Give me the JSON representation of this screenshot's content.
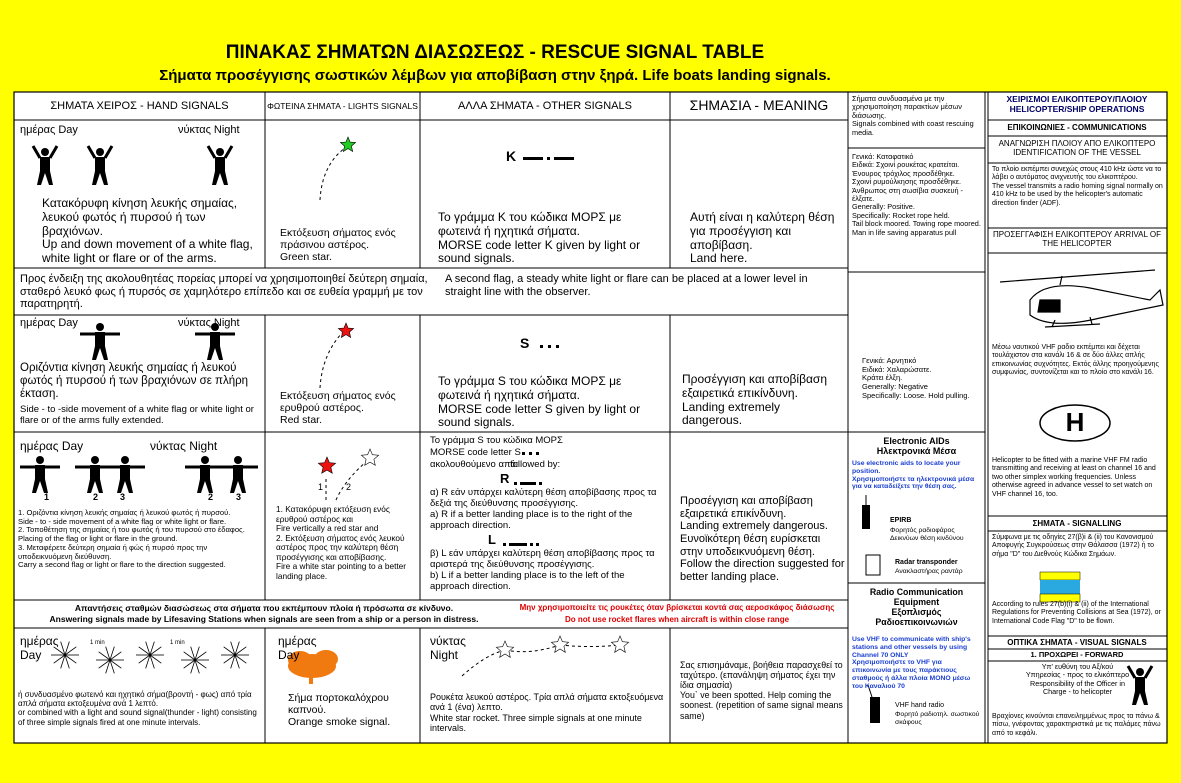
{
  "header": {
    "title": "ΠΙΝΑΚΑΣ ΣΗΜΑΤΩΝ ΔΙΑΣΩΣΕΩΣ - RESCUE SIGNAL TABLE",
    "subtitle": "Σήματα προσέγγισης σωστικών λέμβων για αποβίβαση στην ξηρά.  Life boats landing signals."
  },
  "table": {
    "headers": [
      "ΣΗΜΑΤΑ ΧΕΙΡΟΣ - HAND SIGNALS",
      "ΦΩΤΕΙΝΑ ΣΗΜΑΤΑ - LIGHTS SIGNALS",
      "ΑΛΛΑ ΣΗΜΑΤΑ - OTHER SIGNALS",
      "ΣΗΜΑΣΙΑ - MEANING"
    ],
    "rows": [
      {
        "day": "ημέρας   Day",
        "night": "νύκτας   Night",
        "hand_gr": "Κατακόρυφη κίνηση λευκής σημαίας, λευκού φωτός ή πυρσού ή των βραχιόνων.",
        "hand_en": "Up and down movement of a white flag, white light or flare or of the arms.",
        "light_gr": "Εκτόξευση σήματος ενός πράσινου αστέρος.",
        "light_en": "Green star.",
        "morse": "K",
        "other_gr": "Το γράμμα K του κώδικα ΜΟΡΣ με φωτεινά ή ηχητικά σήματα.",
        "other_en": "MORSE code letter K given by light or sound signals.",
        "meaning_gr": "Αυτή είναι η καλύτερη θέση για προσέγγιση και αποβίβαση.",
        "meaning_en": "Land here."
      },
      {
        "day": "ημέρας   Day",
        "night": "νύκτας   Night",
        "hand_gr": "Οριζόντια κίνηση λευκής σημαίας ή λευκού φωτός ή πυρσού ή των βραχιόνων σε πλήρη έκταση.",
        "hand_en": "Side - to -side movement of a white flag or white light or flare or of  the arms fully extended.",
        "light_gr": "Εκτόξευση σήματος ενός ερυθρού αστέρος.",
        "light_en": "Red star.",
        "morse": "S",
        "other_gr": "Το γράμμα S του κώδικα ΜΟΡΣ με φωτεινά ή ηχητικά σήματα.",
        "other_en": "MORSE code letter S given by light or sound signals.",
        "meaning_gr": "Προσέγγιση και αποβίβαση εξαιρετικά επικίνδυνη.",
        "meaning_en": "Landing extremely dangerous."
      },
      {
        "day": "ημέρας   Day",
        "night": "νύκτας   Night",
        "numbers": [
          "1",
          "2",
          "3",
          "2",
          "3"
        ],
        "hand_items": [
          {
            "gr": "1. Οριζόντια κίνηση λευκής σημαίας ή λευκού φωτός ή πυρσού.",
            "en": "Side - to - side movement of a white flag or white  light or flare."
          },
          {
            "gr": "2. Τοποθέτηση της σημαίας ή του φωτός ή του πυρσού στο έδαφος.",
            "en": "Placing of the flag or light or flare in the  ground."
          },
          {
            "gr": "3. Μεταφέρετε δεύτερη σημαία ή φώς ή πυρσό προς την υποδεικνυόμενη διεύθυνση.",
            "en": "Carry a second flag or light or flare to the direction suggested."
          }
        ],
        "star_labels": [
          "1",
          "2"
        ],
        "light_items": [
          {
            "gr": "1. Κατακόρυφη εκτόξευση ενός ερυθρού αστέρος και",
            "en": "Fire vertically a red star and"
          },
          {
            "gr": "2. Εκτόξευση σήματος ενός λευκού αστέρος προς την καλύτερη θέση προσέγγισης και αποβίβασης.",
            "en": "Fire a white star pointing to a better landing place."
          }
        ],
        "intro_gr": "Το γράμμα S του κώδικα ΜΟΡΣ",
        "intro_en": "MORSE code letter S",
        "follow_gr": "ακολουθούμενο από:",
        "follow_en": "followed by:",
        "r": "R",
        "a_gr": "α) R εάν υπάρχει καλύτερη θέση αποβίβασης προς τα δεξιά της διεύθυνσης προσέγγισης.",
        "a_en": "a) R if a better landing place is to the right of the approach direction.",
        "l": "L",
        "b_gr": "β) L εάν υπάρχει καλύτερη θέση αποβίβασης προς τα αριστερά της διεύθυνσης προσέγγισης.",
        "b_en": "b) L if a better landing place is to the left of the approach direction.",
        "meaning_gr": "Προσέγγιση και αποβίβαση εξαιρετικά επικίνδυνη.",
        "meaning_en": "Landing extremely dangerous.",
        "meaning_gr2": "Ευνοϊκότερη θέση ευρίσκεται στην υποδεικνυόμενη θέση.",
        "meaning_en2": "Follow the direction suggested for better landing place."
      },
      {
        "c1_day_gr": "ημέρας",
        "c1_day_en": "Day",
        "min_labels": [
          "1 min",
          "1 min"
        ],
        "c1_gr": "ή συνδυασμένο φωτεινό και ηχητικό σήμα(βροντή - φως) από τρία απλά σήματα εκτοξευμένα ανά 1 λεπτό.",
        "c1_en": "or combined with a light and sound signal(thunder - light) consisting of three simple signals fired at one minute intervals.",
        "c2_day_gr": "ημέρας",
        "c2_day_en": "Day",
        "c2_gr": "Σήμα πορτοκαλόχρου καπνού.",
        "c2_en": "Orange smoke signal.",
        "c3_night_gr": "νύκτας",
        "c3_night_en": "Night",
        "c3_gr": "Ρουκέτα λευκού αστέρος. Τρία απλά σήματα εκτοξευόμενα ανά 1 (ένα) λεπτο.",
        "c3_en": "White star rocket. Three simple signals at one minute intervals.",
        "c4_gr": "Σας επισημάναμε, βοήθεια παρασχεθεί το ταχύτερο. (επανάληψη σήματος έχει την ίδια σημασία)",
        "c4_en": "You` ve been spotted. Help coming the soonest. (repetition of same signal means same)"
      }
    ],
    "note": {
      "gr": "Προς ένδειξη της ακολουθητέας πορείας μπορεί να χρησιμοποιηθεί δεύτερη σημαία, σταθερό λευκό φως ή πυρσός σε χαμηλότερο επίπεδο και σε ευθεία γραμμή με τον παρατηρητή.",
      "en": "A second flag, a steady white light or flare can be placed at a lower level in straight line with the observer."
    },
    "answer": {
      "gr": "Απαντήσεις σταθμών διασώσεως στα σήματα που εκπέμπουν πλοία ή πρόσωπα σε κίνδυνο.",
      "en": "Answering signals made by Lifesaving Stations when signals are seen from a ship or a person in distress.",
      "warn_gr": "Μην χρησιμοποιείτε τις ρουκέτες όταν βρίσκεται κοντά σας αεροσκάφος διάσωσης",
      "warn_en": "Do not use rocket flares when aircraft is within close range"
    }
  },
  "middle": {
    "coast_gr": "Σήματα συνδυασμένα με την χρησιμοποίηση παρακτίων μέσων διάσωσης.",
    "coast_en": "Signals combined with coast rescuing media.",
    "positive": [
      "Γενικά: Καταφατικό",
      "Ειδικά: Σχοινί ρουκέτας κρατείται. Ένουρος τρόχιλος προσδέθηκε.",
      "Σχοινί ρυμούλκησης προσδέθηκε.",
      "Άνθρωπος στη σωσίβια συσκευή - έλξατε.",
      "Generally: Positive.",
      "Specifically: Rocket rope held.",
      "Tail block moored. Towing rope moored.",
      "Man in life saving apparatus pull"
    ],
    "negative": [
      "Γενικά: Αρνητικό",
      "Ειδικά: Χαλαρώσατε.",
      "Κράτει έλξη.",
      "Generally: Negative",
      "Specifically: Loose. Hold pulling."
    ],
    "electronic": {
      "title_en": "Electronic  AIDs",
      "title_gr": "Ηλεκτρονικά  Μέσα",
      "desc_en": "Use electronic aids to locate your position.",
      "desc_gr": "Χρησιμοποιήστε τα ηλεκτρονικά μέσα για να καταδείξετε την θέση σας.",
      "epirb": "EPIRB",
      "epirb_gr": "Φορητός ραδιοφάρος Δεικνύων θέση κινδύνου",
      "radar": "Radar transponder",
      "radar_gr": "Ανακλαστήρας ραντάρ"
    },
    "radio": {
      "title_en": "Radio Communication Equipment",
      "title_gr": "Εξοπλισμός Ραδιοεπικοινωνιών",
      "desc_en": "Use VHF to communicate with ship's stations and other vessels by using Channel 70 ONLY",
      "desc_gr": "Χρησιμοποιήστε το VHF για επικοινωνία με τους παράκτιους σταθμούς ή άλλα πλοία ΜΟΝΟ μέσω του Καναλιού 70",
      "vhf": "VHF hand radio",
      "vhf_gr": "Φορητό ραδιοτηλ. σωστικού σκάφους"
    }
  },
  "right": {
    "title": "ΧΕΙΡΙΣΜΟΙ ΕΛΙΚΟΠΤΕΡΟΥ/ΠΛΟΙΟΥ HELICOPTER/SHIP OPERATIONS",
    "comms": "ΕΠΙΚΟΙΝΩΝΙΕΣ - COMMUNICATIONS",
    "ident": "ΑΝΑΓΝΩΡΙΣΗ ΠΛΟΙΟΥ ΑΠΟ ΕΛΙΚΟΠΤΕΡΟ IDENTIFICATION OF THE VESSEL",
    "ident_gr": "Το πλοίο εκπέμπει συνεχώς στους 410 kHz ώστε να το λάβει ο αυτόματος ανιχνευτής του ελικοπτέρου.",
    "ident_en": "The vessel transmits a radio homing signal normally on 410 kHz to be used by the helicopter's automatic direction finder (ADF).",
    "arrival": "ΠΡΟΣΕΓΓΑΦΙΣΗ ΕΛΙΚΟΠΤΕΡΟΥ ARRIVAL OF THE HELICOPTER",
    "arrival_gr": "Μέσω ναυτικού VHF ραδιο εκπέμπει και δέχεται τουλάχιστον στα κανάλι 16 & σε δύο άλλες απλής επικοινωνίας συχνότητες.  Εκτός άλλης προηγούμενης συμφωνίας, συντονίζεται και το πλοίο στο κανάλι 16.",
    "h": "H",
    "helideck_en": "Helicopter to be fitted with a marine VHF FM radio transmitting and receiving at least on channel 16 and two other simplex working frequencies.  Unless otherwise agreed in advance vessel to set watch on VHF channel 16, too.",
    "signalling": "ΣΗΜΑΤΑ - SIGNALLING",
    "sig_gr": "Σύμφωνα με τις οδηγίες 27(β)i & (ii) του Κανονισμού Αποφυγής Συγκρούσεως στην Θάλασσα (1972) ή το σήμα \"D\" του Διεθνούς Κώδικα Σημάων.",
    "sig_en": "According to rules 27(b)(i) & (ii) of the International Regulations for Preventing Collisions at Sea (1972), or International Code Flag \"D\" to be flown.",
    "visual": "ΟΠΤΙΚΑ ΣΗΜΑΤΑ - VISUAL SIGNALS",
    "forward": "1.  ΠΡΟΧΩΡΕΙ - FORWARD",
    "fwd_gr": "Υπ' ευθύνη του Αξ/κού Υπηρεσίας - προς το ελικόπτερο",
    "fwd_en": "Responsibility of the Officer in Charge - to helicopter",
    "fwd_note": "Βραχίονες κινούνται επανειλημμένως προς τα πάνω & πίσω, γνέφοντας χαρακτηριστικά με τις παλάμες πάνω από το κεφάλι."
  }
}
